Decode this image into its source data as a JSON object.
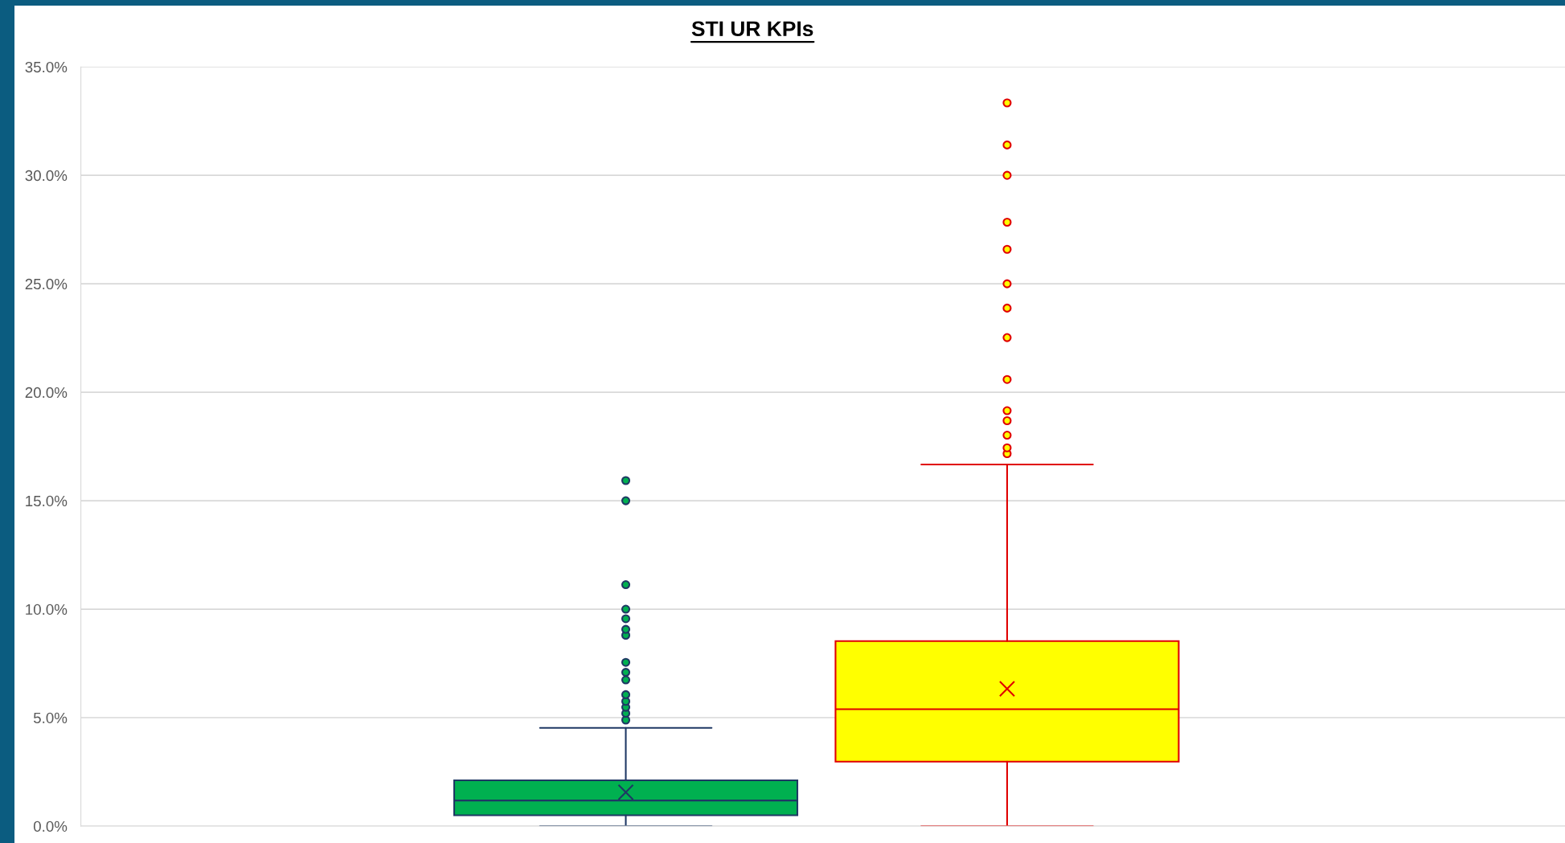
{
  "chart_data": {
    "type": "box",
    "title": "STI UR KPIs",
    "categories": [
      null,
      null
    ],
    "colors": [
      "#00b050",
      "#ffff00"
    ],
    "boxes": [
      {
        "low": 0,
        "q1": 0.5,
        "median": 1.18,
        "q3": 2.11,
        "high": 4.53,
        "mean": 1.56,
        "outliers": [
          4.89,
          5.2,
          5.48,
          5.75,
          6.06,
          6.74,
          7.09,
          7.55,
          8.8,
          9.07,
          9.56,
          10.0,
          11.13,
          15.0,
          15.93
        ]
      },
      {
        "low": 0,
        "q1": 2.97,
        "median": 5.39,
        "q3": 8.53,
        "high": 16.67,
        "mean": 6.33,
        "outliers": [
          17.17,
          17.44,
          18.02,
          18.69,
          19.15,
          20.59,
          22.52,
          23.88,
          25.0,
          26.59,
          27.84,
          30.0,
          31.4,
          33.34
        ]
      }
    ],
    "ylim": [
      0,
      35
    ],
    "yticks": [
      {
        "value": 0,
        "label": "0.0%"
      },
      {
        "value": 5,
        "label": "5.0%"
      },
      {
        "value": 10,
        "label": "10.0%"
      },
      {
        "value": 15,
        "label": "15.0%"
      },
      {
        "value": 20,
        "label": "20.0%"
      },
      {
        "value": 25,
        "label": "25.0%"
      },
      {
        "value": 30,
        "label": "30.0%"
      },
      {
        "value": 35,
        "label": "35.0%"
      }
    ],
    "grid": "y"
  }
}
